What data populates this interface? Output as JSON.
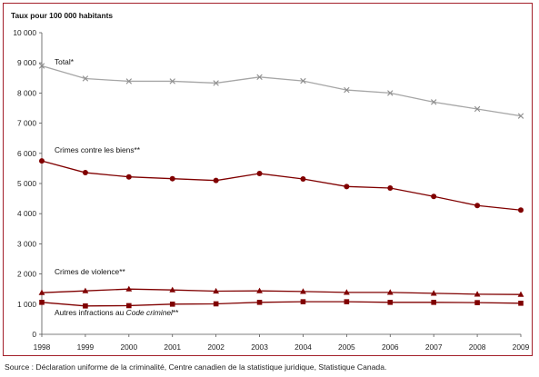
{
  "chart_data": {
    "type": "line",
    "ylabel": "Taux pour 100 000 habitants",
    "ylim": [
      0,
      10000
    ],
    "yticks": [
      0,
      1000,
      2000,
      3000,
      4000,
      5000,
      6000,
      7000,
      8000,
      9000,
      10000
    ],
    "ytick_labels": [
      "0",
      "1 000",
      "2 000",
      "3 000",
      "4 000",
      "5 000",
      "6 000",
      "7 000",
      "8 000",
      "9 000",
      "10 000"
    ],
    "x": [
      "1998",
      "1999",
      "2000",
      "2001",
      "2002",
      "2003",
      "2004",
      "2005",
      "2006",
      "2007",
      "2008",
      "2009"
    ],
    "grid": false,
    "series": [
      {
        "name": "Total*",
        "color": "#a6a6a6",
        "marker": "x",
        "values": [
          8900,
          8480,
          8390,
          8390,
          8330,
          8530,
          8400,
          8100,
          8000,
          7700,
          7470,
          7240
        ]
      },
      {
        "name": "Crimes contre les biens**",
        "color": "#800000",
        "marker": "circle",
        "values": [
          5750,
          5360,
          5220,
          5160,
          5100,
          5330,
          5150,
          4900,
          4850,
          4570,
          4270,
          4120
        ]
      },
      {
        "name": "Crimes de violence**",
        "color": "#800000",
        "marker": "triangle",
        "values": [
          1380,
          1440,
          1500,
          1470,
          1430,
          1440,
          1420,
          1390,
          1390,
          1360,
          1330,
          1320
        ]
      },
      {
        "name_prefix": "Autres infractions au ",
        "name_italic": "Code criminel",
        "name_suffix": "**",
        "color": "#800000",
        "marker": "square",
        "values": [
          1060,
          940,
          950,
          1000,
          1010,
          1060,
          1080,
          1080,
          1060,
          1060,
          1050,
          1030
        ]
      }
    ]
  },
  "source": "Source : Déclaration uniforme de la criminalité, Centre canadien de la statistique juridique, Statistique Canada."
}
